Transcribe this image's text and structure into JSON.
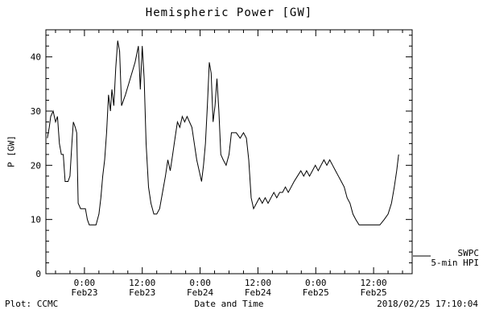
{
  "title": "Hemispheric Power [GW]",
  "footer": {
    "plot_credit": "Plot: CCMC",
    "timestamp": "2018/02/25 17:10:04"
  },
  "legend": {
    "source": "SWPC",
    "series": "5-min HPI"
  },
  "chart_data": {
    "type": "line",
    "title": "Hemispheric Power [GW]",
    "xlabel": "Date and Time",
    "ylabel": "P [GW]",
    "ylim": [
      0,
      45
    ],
    "xlim_hours": [
      -8,
      68
    ],
    "x_reference": "hours since Feb23 0:00",
    "grid": false,
    "background": "#ffffff",
    "line_color": "#000000",
    "legend_position": "right-outside-bottom",
    "y_ticks": [
      0,
      10,
      20,
      30,
      40
    ],
    "y_minor_step": 2,
    "x_minor_step_hours": 3,
    "x_ticks": [
      {
        "t": 0,
        "time": "0:00",
        "date": "Feb23"
      },
      {
        "t": 12,
        "time": "12:00",
        "date": "Feb23"
      },
      {
        "t": 24,
        "time": "0:00",
        "date": "Feb24"
      },
      {
        "t": 36,
        "time": "12:00",
        "date": "Feb24"
      },
      {
        "t": 48,
        "time": "0:00",
        "date": "Feb25"
      },
      {
        "t": 60,
        "time": "12:00",
        "date": "Feb25"
      }
    ],
    "series": [
      {
        "name": "SWPC 5-min HPI",
        "points": [
          [
            -7.7,
            25
          ],
          [
            -7.3,
            27
          ],
          [
            -7.0,
            29
          ],
          [
            -6.5,
            30
          ],
          [
            -6.0,
            28
          ],
          [
            -5.6,
            29
          ],
          [
            -5.2,
            24
          ],
          [
            -4.8,
            22
          ],
          [
            -4.4,
            22
          ],
          [
            -4.0,
            17
          ],
          [
            -3.4,
            17
          ],
          [
            -3.0,
            18
          ],
          [
            -2.6,
            24
          ],
          [
            -2.3,
            28
          ],
          [
            -1.9,
            27
          ],
          [
            -1.6,
            26
          ],
          [
            -1.3,
            13
          ],
          [
            -0.8,
            12
          ],
          [
            -0.3,
            12
          ],
          [
            0.2,
            12
          ],
          [
            0.6,
            10
          ],
          [
            1.0,
            9
          ],
          [
            2.4,
            9
          ],
          [
            3.0,
            11
          ],
          [
            3.4,
            14
          ],
          [
            3.8,
            18
          ],
          [
            4.2,
            21
          ],
          [
            4.6,
            26
          ],
          [
            5.0,
            33
          ],
          [
            5.4,
            30
          ],
          [
            5.7,
            34
          ],
          [
            6.1,
            31
          ],
          [
            6.5,
            38
          ],
          [
            6.9,
            43
          ],
          [
            7.3,
            41
          ],
          [
            7.7,
            31
          ],
          [
            8.5,
            33
          ],
          [
            9.5,
            36
          ],
          [
            10.5,
            39
          ],
          [
            11.2,
            42
          ],
          [
            11.6,
            34
          ],
          [
            12.0,
            42
          ],
          [
            12.4,
            36
          ],
          [
            12.8,
            24
          ],
          [
            13.3,
            16
          ],
          [
            13.8,
            13
          ],
          [
            14.4,
            11
          ],
          [
            15.0,
            11
          ],
          [
            15.6,
            12
          ],
          [
            16.2,
            15
          ],
          [
            16.8,
            18
          ],
          [
            17.3,
            21
          ],
          [
            17.8,
            19
          ],
          [
            18.3,
            22
          ],
          [
            18.8,
            25
          ],
          [
            19.3,
            28
          ],
          [
            19.8,
            27
          ],
          [
            20.3,
            29
          ],
          [
            20.8,
            28
          ],
          [
            21.3,
            29
          ],
          [
            21.8,
            28
          ],
          [
            22.3,
            27
          ],
          [
            22.8,
            24
          ],
          [
            23.3,
            21
          ],
          [
            23.8,
            19
          ],
          [
            24.3,
            17
          ],
          [
            24.7,
            20
          ],
          [
            25.1,
            24
          ],
          [
            25.5,
            31
          ],
          [
            25.9,
            39
          ],
          [
            26.3,
            37
          ],
          [
            26.7,
            28
          ],
          [
            27.1,
            31
          ],
          [
            27.5,
            36
          ],
          [
            27.9,
            30
          ],
          [
            28.3,
            22
          ],
          [
            28.8,
            21
          ],
          [
            29.4,
            20
          ],
          [
            30.0,
            22
          ],
          [
            30.5,
            26
          ],
          [
            31.5,
            26
          ],
          [
            32.3,
            25
          ],
          [
            33.0,
            26
          ],
          [
            33.6,
            25
          ],
          [
            34.1,
            21
          ],
          [
            34.6,
            14
          ],
          [
            35.1,
            12
          ],
          [
            35.7,
            13
          ],
          [
            36.3,
            14
          ],
          [
            36.9,
            13
          ],
          [
            37.5,
            14
          ],
          [
            38.1,
            13
          ],
          [
            38.7,
            14
          ],
          [
            39.3,
            15
          ],
          [
            39.9,
            14
          ],
          [
            40.5,
            15
          ],
          [
            41.1,
            15
          ],
          [
            41.7,
            16
          ],
          [
            42.3,
            15
          ],
          [
            42.9,
            16
          ],
          [
            43.5,
            17
          ],
          [
            44.2,
            18
          ],
          [
            44.9,
            19
          ],
          [
            45.5,
            18
          ],
          [
            46.1,
            19
          ],
          [
            46.7,
            18
          ],
          [
            47.3,
            19
          ],
          [
            47.9,
            20
          ],
          [
            48.5,
            19
          ],
          [
            49.1,
            20
          ],
          [
            49.7,
            21
          ],
          [
            50.3,
            20
          ],
          [
            50.9,
            21
          ],
          [
            51.5,
            20
          ],
          [
            52.1,
            19
          ],
          [
            52.7,
            18
          ],
          [
            53.3,
            17
          ],
          [
            53.9,
            16
          ],
          [
            54.5,
            14
          ],
          [
            55.1,
            13
          ],
          [
            55.7,
            11
          ],
          [
            56.3,
            10
          ],
          [
            57.0,
            9
          ],
          [
            58.5,
            9
          ],
          [
            60.0,
            9
          ],
          [
            61.3,
            9
          ],
          [
            62.2,
            10
          ],
          [
            63.0,
            11
          ],
          [
            63.7,
            13
          ],
          [
            64.3,
            16
          ],
          [
            64.8,
            19
          ],
          [
            65.2,
            22
          ]
        ]
      }
    ]
  }
}
